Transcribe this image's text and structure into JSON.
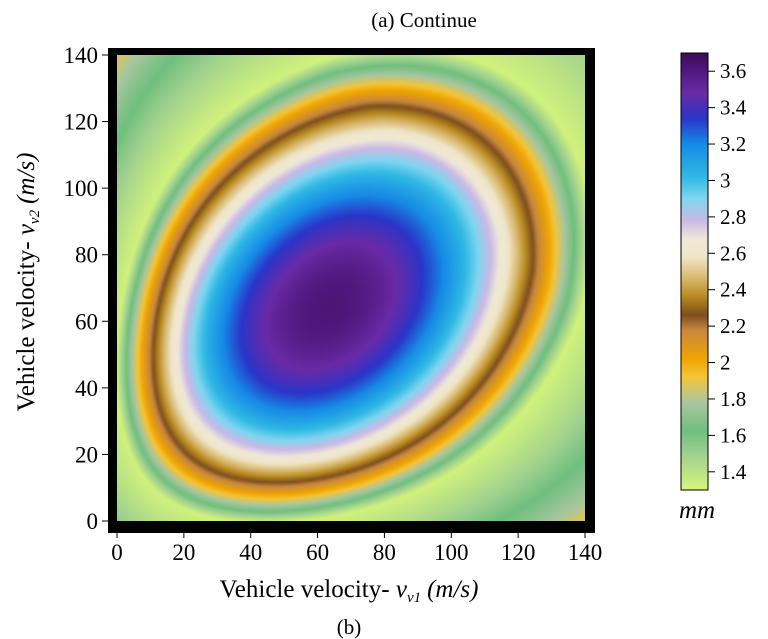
{
  "figure": {
    "top_caption": "(a)   Continue",
    "bottom_caption": "(b)"
  },
  "chart_data": {
    "type": "heatmap",
    "xlabel": {
      "text": "Vehicle velocity- ",
      "var": "v",
      "sub": "v1",
      "unit": "(m/s)"
    },
    "ylabel": {
      "text": "Vehicle velocity- ",
      "var": "v",
      "sub": "v2",
      "unit": "(m/s)"
    },
    "xlim": [
      0,
      140
    ],
    "ylim": [
      0,
      140
    ],
    "x_ticks": [
      0,
      20,
      40,
      60,
      80,
      100,
      120,
      140
    ],
    "y_ticks": [
      0,
      20,
      40,
      60,
      80,
      100,
      120,
      140
    ],
    "colorbar": {
      "unit_label": "mm",
      "range": [
        1.3,
        3.7
      ],
      "ticks": [
        "3.6",
        "3.4",
        "3.2",
        "3",
        "2.8",
        "2.6",
        "2.4",
        "2.2",
        "2",
        "1.8",
        "1.6",
        "1.4"
      ],
      "colors": [
        {
          "v": 1.3,
          "c": "#d6f57a"
        },
        {
          "v": 1.5,
          "c": "#9fd08f"
        },
        {
          "v": 1.62,
          "c": "#6fbf7e"
        },
        {
          "v": 1.78,
          "c": "#a9c6a0"
        },
        {
          "v": 1.92,
          "c": "#f3c53a"
        },
        {
          "v": 2.02,
          "c": "#f0a500"
        },
        {
          "v": 2.18,
          "c": "#c6873e"
        },
        {
          "v": 2.26,
          "c": "#7d4e1e"
        },
        {
          "v": 2.36,
          "c": "#b7881e"
        },
        {
          "v": 2.46,
          "c": "#d8b66a"
        },
        {
          "v": 2.58,
          "c": "#efe6c8"
        },
        {
          "v": 2.68,
          "c": "#efe8d8"
        },
        {
          "v": 2.78,
          "c": "#c9b9e6"
        },
        {
          "v": 2.9,
          "c": "#7fd6ef"
        },
        {
          "v": 3.02,
          "c": "#2fb8e4"
        },
        {
          "v": 3.2,
          "c": "#168ae6"
        },
        {
          "v": 3.34,
          "c": "#2a35c9"
        },
        {
          "v": 3.48,
          "c": "#6a2aa6"
        },
        {
          "v": 3.7,
          "c": "#3c0a5c"
        }
      ]
    },
    "field": {
      "peak_center": [
        62,
        62
      ],
      "peak_value": 3.66,
      "description_values": "smooth bowl peaking near (62,62) ~3.66 mm, decreasing toward ~1.5 mm at the edges"
    }
  }
}
